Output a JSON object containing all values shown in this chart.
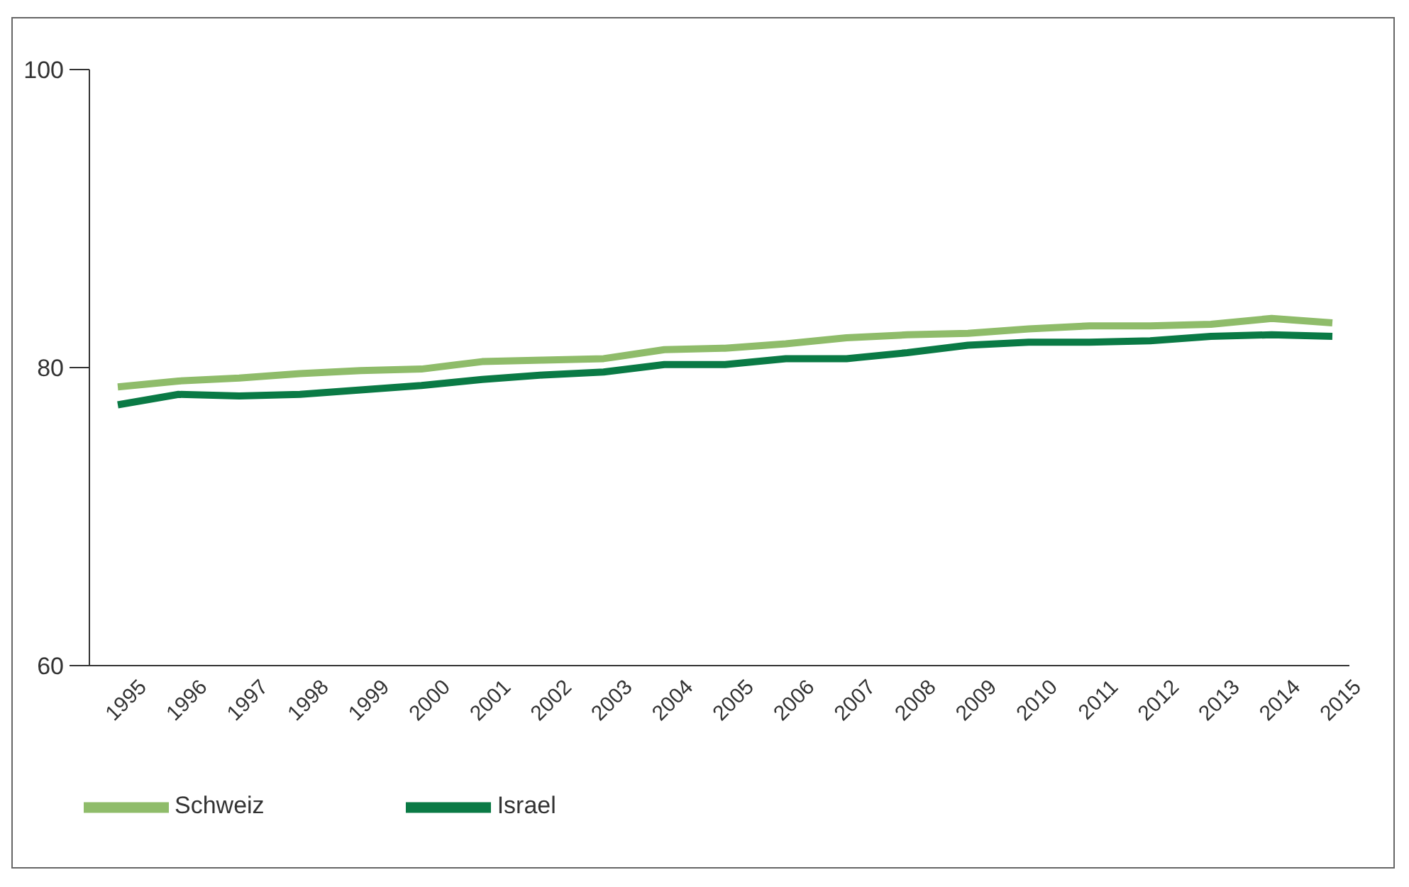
{
  "chart_data": {
    "type": "line",
    "categories": [
      "1995",
      "1996",
      "1997",
      "1998",
      "1999",
      "2000",
      "2001",
      "2002",
      "2003",
      "2004",
      "2005",
      "2006",
      "2007",
      "2008",
      "2009",
      "2010",
      "2011",
      "2012",
      "2013",
      "2014",
      "2015"
    ],
    "series": [
      {
        "name": "Schweiz",
        "color": "#8fbc6a",
        "values": [
          78.7,
          79.1,
          79.3,
          79.6,
          79.8,
          79.9,
          80.4,
          80.5,
          80.6,
          81.2,
          81.3,
          81.6,
          82.0,
          82.2,
          82.3,
          82.6,
          82.8,
          82.8,
          82.9,
          83.3,
          83.0
        ]
      },
      {
        "name": "Israel",
        "color": "#0a7a45",
        "values": [
          77.5,
          78.2,
          78.1,
          78.2,
          78.5,
          78.8,
          79.2,
          79.5,
          79.7,
          80.2,
          80.2,
          80.6,
          80.6,
          81.0,
          81.5,
          81.7,
          81.7,
          81.8,
          82.1,
          82.2,
          82.1
        ]
      }
    ],
    "ylim": [
      60,
      100
    ],
    "yticks": [
      60,
      80,
      100
    ],
    "grid": false,
    "legend": "bottom left",
    "marker": "none",
    "line_style": "solid"
  }
}
